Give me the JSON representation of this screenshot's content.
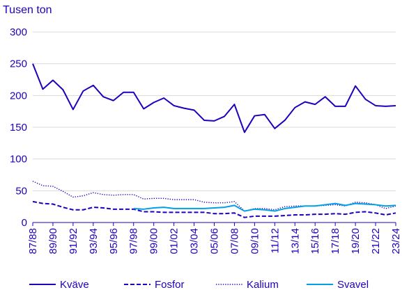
{
  "chart_data": {
    "type": "line",
    "ylabel": "Tusen ton",
    "ylim": [
      0,
      300
    ],
    "yticks": [
      0,
      50,
      100,
      150,
      200,
      250,
      300
    ],
    "x": [
      "87/88",
      "88/89",
      "89/90",
      "90/91",
      "91/92",
      "92/93",
      "93/94",
      "94/95",
      "95/96",
      "96/97",
      "97/98",
      "98/99",
      "99/00",
      "00/01",
      "01/02",
      "02/03",
      "03/04",
      "04/05",
      "05/06",
      "06/07",
      "07/08",
      "08/09",
      "09/10",
      "10/11",
      "11/12",
      "12/13",
      "13/14",
      "14/15",
      "15/16",
      "16/17",
      "17/18",
      "18/19",
      "19/20",
      "20/21",
      "21/22",
      "22/23",
      "23/24"
    ],
    "xtick_labels": [
      "87/88",
      "89/90",
      "91/92",
      "93/94",
      "95/96",
      "97/98",
      "99/00",
      "01/02",
      "03/04",
      "05/06",
      "07/08",
      "09/10",
      "11/12",
      "13/14",
      "15/16",
      "17/18",
      "19/20",
      "21/22",
      "23/24"
    ],
    "grid": "horizontal",
    "legend_position": "bottom",
    "series": [
      {
        "name": "Kväve",
        "color": "#1e00be",
        "style": "solid",
        "values": [
          250,
          210,
          224,
          209,
          178,
          207,
          216,
          198,
          192,
          205,
          205,
          179,
          189,
          196,
          184,
          180,
          177,
          161,
          160,
          167,
          186,
          142,
          168,
          170,
          148,
          161,
          181,
          190,
          186,
          198,
          183,
          183,
          215,
          194,
          184,
          183,
          184
        ]
      },
      {
        "name": "Fosfor",
        "color": "#1e00be",
        "style": "dashed",
        "values": [
          33,
          30,
          29,
          24,
          20,
          20,
          24,
          23,
          21,
          21,
          21,
          17,
          17,
          16,
          16,
          16,
          16,
          16,
          14,
          14,
          15,
          8,
          10,
          10,
          10,
          11,
          12,
          12,
          13,
          13,
          14,
          13,
          16,
          17,
          15,
          12,
          15
        ]
      },
      {
        "name": "Kalium",
        "color": "#1e00be",
        "style": "dotted",
        "values": [
          65,
          58,
          57,
          49,
          40,
          42,
          47,
          44,
          43,
          44,
          44,
          37,
          38,
          38,
          36,
          36,
          36,
          32,
          31,
          31,
          33,
          18,
          22,
          22,
          20,
          25,
          26,
          26,
          26,
          27,
          28,
          26,
          32,
          31,
          28,
          22,
          26
        ]
      },
      {
        "name": "Svavel",
        "color": "#00a0e6",
        "style": "solid",
        "values": [
          null,
          null,
          null,
          null,
          null,
          null,
          null,
          null,
          null,
          null,
          22,
          21,
          23,
          24,
          22,
          22,
          22,
          22,
          23,
          24,
          27,
          18,
          21,
          20,
          18,
          22,
          24,
          26,
          26,
          28,
          30,
          27,
          30,
          29,
          28,
          26,
          27
        ]
      }
    ]
  }
}
